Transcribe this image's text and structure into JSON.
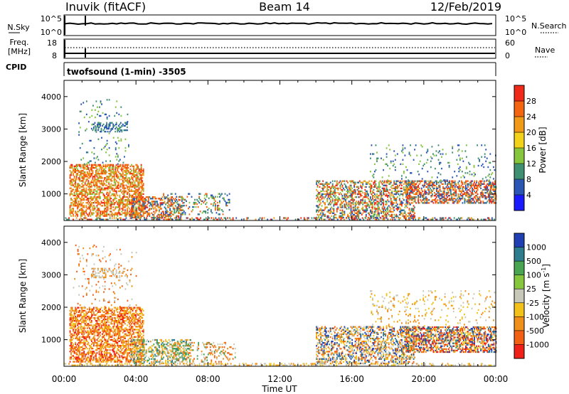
{
  "header": {
    "station": "Inuvik (fitACF)",
    "beam": "Beam 14",
    "date": "12/Feb/2019"
  },
  "nsky_panel": {
    "left_label": "N.Sky",
    "left_ticks": [
      "10^5",
      "10^0"
    ],
    "right_ticks": [
      "10^5",
      "10^0"
    ],
    "right_label": "N.Search",
    "right_label_style": "dotted"
  },
  "freq_panel": {
    "left_label_line1": "Freq.",
    "left_label_line2": "[MHz]",
    "left_ticks": [
      "18",
      "8"
    ],
    "right_ticks": [
      "60",
      "0"
    ],
    "right_label": "Nave",
    "right_label_style": "dotted"
  },
  "cpid": {
    "label": "CPID",
    "value": "twofsound (1-min) -3505"
  },
  "x_axis": {
    "title": "Time UT",
    "ticks": [
      "00:00",
      "04:00",
      "08:00",
      "12:00",
      "16:00",
      "20:00",
      "00:00"
    ]
  },
  "chart_data": [
    {
      "type": "heatmap",
      "title": "",
      "xlabel": "Time UT",
      "ylabel": "Slant Range [km]",
      "y_ticks": [
        1000,
        2000,
        3000,
        4000
      ],
      "ylim": [
        180,
        4500
      ],
      "xlim_hours": [
        0,
        24
      ],
      "colorbar": {
        "label": "Power [dB]",
        "ticks": [
          "4",
          "8",
          "12",
          "16",
          "20",
          "24",
          "28"
        ],
        "colors": [
          "#1a1aff",
          "#2a56b4",
          "#3f8f73",
          "#86c63c",
          "#f2d21b",
          "#f09a18",
          "#f46512",
          "#ef2a18"
        ]
      },
      "regions": [
        {
          "t0": 0.3,
          "t1": 4.4,
          "r0": 300,
          "r1": 1900,
          "colors": [
            5,
            6,
            7,
            6,
            5,
            3
          ],
          "density": 0.55
        },
        {
          "t0": 1.5,
          "t1": 3.5,
          "r0": 2900,
          "r1": 3200,
          "colors": [
            1,
            2
          ],
          "density": 0.35
        },
        {
          "t0": 0.8,
          "t1": 3.6,
          "r0": 1900,
          "r1": 3900,
          "colors": [
            1,
            2,
            3
          ],
          "density": 0.05
        },
        {
          "t0": 3.7,
          "t1": 6.6,
          "r0": 250,
          "r1": 900,
          "colors": [
            7,
            6,
            5,
            1,
            2
          ],
          "density": 0.45
        },
        {
          "t0": 5.5,
          "t1": 9.2,
          "r0": 350,
          "r1": 1000,
          "colors": [
            2,
            1,
            3,
            6
          ],
          "density": 0.2
        },
        {
          "t0": 14.0,
          "t1": 19.5,
          "r0": 250,
          "r1": 1400,
          "colors": [
            6,
            5,
            7,
            2,
            1,
            3
          ],
          "density": 0.45
        },
        {
          "t0": 19.0,
          "t1": 24.0,
          "r0": 700,
          "r1": 1400,
          "colors": [
            7,
            6,
            5,
            2,
            1
          ],
          "density": 0.55
        },
        {
          "t0": 17.0,
          "t1": 24.0,
          "r0": 1400,
          "r1": 2500,
          "colors": [
            1,
            2,
            3
          ],
          "density": 0.07
        },
        {
          "t0": 0.0,
          "t1": 24.0,
          "r0": 190,
          "r1": 260,
          "colors": [
            1,
            2,
            5,
            7
          ],
          "density": 0.35
        }
      ]
    },
    {
      "type": "heatmap",
      "title": "",
      "xlabel": "Time UT",
      "ylabel": "Slant Range [km]",
      "y_ticks": [
        1000,
        2000,
        3000,
        4000
      ],
      "ylim": [
        180,
        4500
      ],
      "xlim_hours": [
        0,
        24
      ],
      "colorbar": {
        "label": "Velocity [m s^-1]",
        "ticks": [
          "1000",
          "500",
          "100",
          "25",
          "-25",
          "-100",
          "-500",
          "-1000"
        ],
        "colors": [
          "#1f3fb3",
          "#2d7d8f",
          "#4aa552",
          "#86c63c",
          "#c8c8b8",
          "#f2c21b",
          "#f0901a",
          "#f26014",
          "#ef2018"
        ]
      },
      "regions": [
        {
          "t0": 0.3,
          "t1": 4.4,
          "r0": 300,
          "r1": 2000,
          "colors": [
            6,
            7,
            6,
            5,
            8
          ],
          "density": 0.55
        },
        {
          "t0": 1.5,
          "t1": 3.5,
          "r0": 2900,
          "r1": 3200,
          "colors": [
            4,
            6
          ],
          "density": 0.35
        },
        {
          "t0": 0.5,
          "t1": 4.0,
          "r0": 2000,
          "r1": 3900,
          "colors": [
            6,
            7,
            4
          ],
          "density": 0.05
        },
        {
          "t0": 3.7,
          "t1": 7.0,
          "r0": 250,
          "r1": 1000,
          "colors": [
            4,
            2,
            6,
            5,
            1
          ],
          "density": 0.4
        },
        {
          "t0": 6.0,
          "t1": 9.5,
          "r0": 300,
          "r1": 900,
          "colors": [
            6,
            7,
            4,
            2
          ],
          "density": 0.2
        },
        {
          "t0": 14.0,
          "t1": 19.5,
          "r0": 250,
          "r1": 1400,
          "colors": [
            6,
            7,
            5,
            1,
            0,
            4
          ],
          "density": 0.45
        },
        {
          "t0": 19.0,
          "t1": 24.0,
          "r0": 600,
          "r1": 1400,
          "colors": [
            6,
            7,
            8,
            5,
            1,
            0
          ],
          "density": 0.55
        },
        {
          "t0": 17.0,
          "t1": 24.0,
          "r0": 1400,
          "r1": 2500,
          "colors": [
            4,
            6,
            5
          ],
          "density": 0.08
        },
        {
          "t0": 0.0,
          "t1": 24.0,
          "r0": 190,
          "r1": 260,
          "colors": [
            5,
            6,
            4
          ],
          "density": 0.3
        }
      ]
    }
  ]
}
